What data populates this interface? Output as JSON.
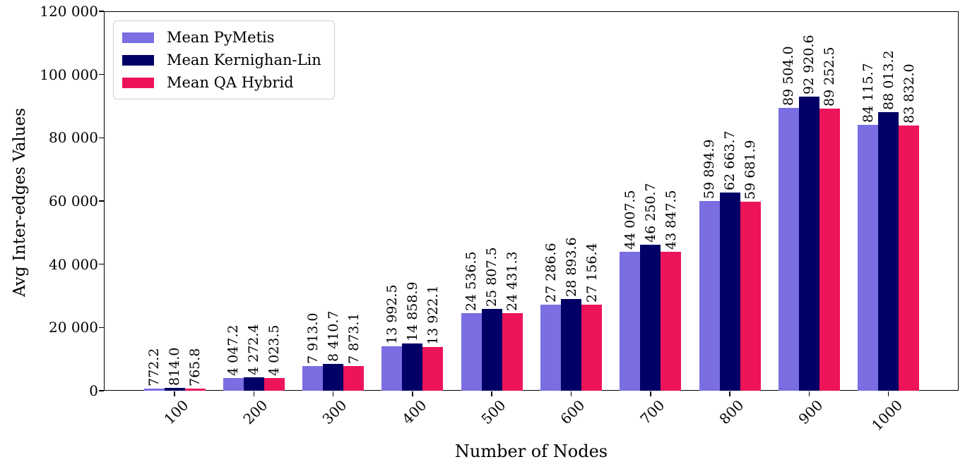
{
  "chart_data": {
    "type": "bar",
    "title": "",
    "xlabel": "Number of Nodes",
    "ylabel": "Avg Inter-edges Values",
    "categories": [
      "100",
      "200",
      "300",
      "400",
      "500",
      "600",
      "700",
      "800",
      "900",
      "1000"
    ],
    "series": [
      {
        "name": "Mean PyMetis",
        "color": "#7a6ee2",
        "values": [
          772.2,
          4047.2,
          7913.0,
          13992.5,
          24536.5,
          27286.6,
          44007.5,
          59894.9,
          89504.0,
          84115.7
        ],
        "labels": [
          "772.2",
          "4 047.2",
          "7 913.0",
          "13 992.5",
          "24 536.5",
          "27 286.6",
          "44 007.5",
          "59 894.9",
          "89 504.0",
          "84 115.7"
        ]
      },
      {
        "name": "Mean Kernighan-Lin",
        "color": "#000066",
        "values": [
          814.0,
          4272.4,
          8410.7,
          14858.9,
          25807.5,
          28893.6,
          46250.7,
          62663.7,
          92920.6,
          88013.2
        ],
        "labels": [
          "814.0",
          "4 272.4",
          "8 410.7",
          "14 858.9",
          "25 807.5",
          "28 893.6",
          "46 250.7",
          "62 663.7",
          "92 920.6",
          "88 013.2"
        ]
      },
      {
        "name": "Mean QA Hybrid",
        "color": "#ed1459",
        "values": [
          765.8,
          4023.5,
          7873.1,
          13922.1,
          24431.3,
          27156.4,
          43847.5,
          59681.9,
          89252.5,
          83832.0
        ],
        "labels": [
          "765.8",
          "4 023.5",
          "7 873.1",
          "13 922.1",
          "24 431.3",
          "27 156.4",
          "43 847.5",
          "59 681.9",
          "89 252.5",
          "83 832.0"
        ]
      }
    ],
    "ylim": [
      0,
      120000
    ],
    "yticks": [
      0,
      20000,
      40000,
      60000,
      80000,
      100000,
      120000
    ],
    "ytick_labels": [
      "0",
      "20 000",
      "40 000",
      "60 000",
      "80 000",
      "100 000",
      "120 000"
    ],
    "legend_position": "upper-left",
    "grid": false
  }
}
